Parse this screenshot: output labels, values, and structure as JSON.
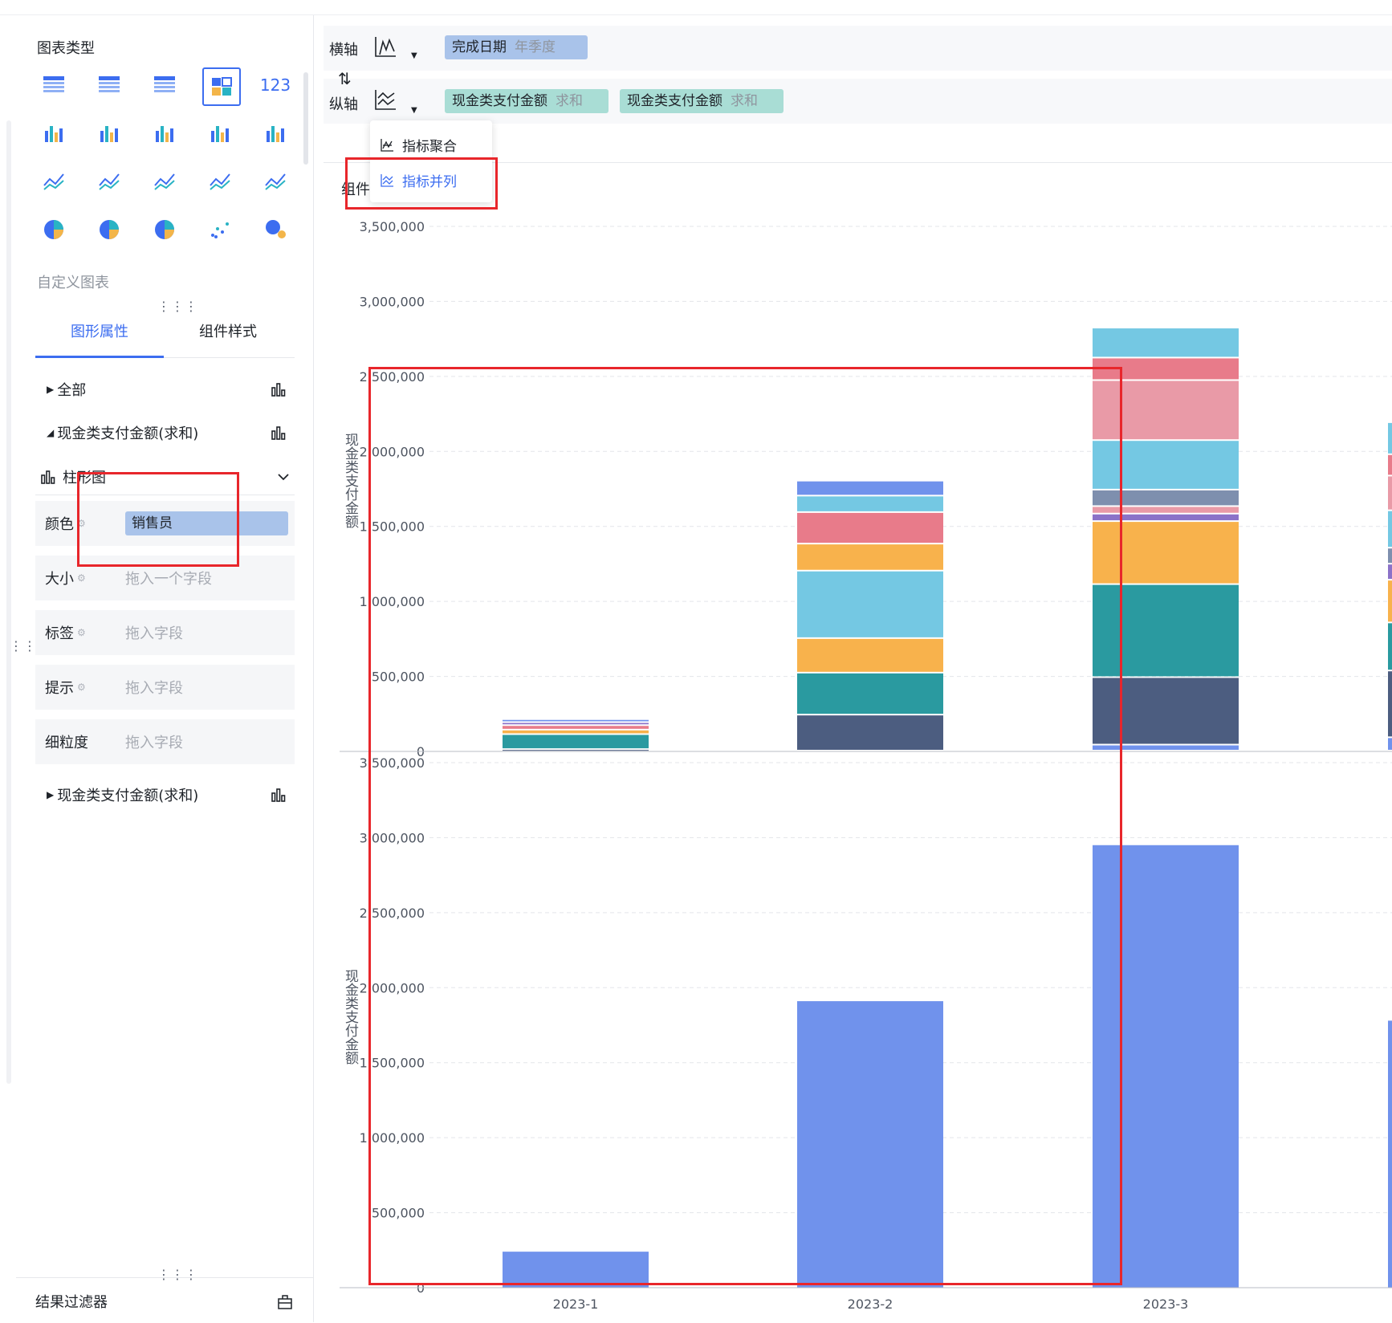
{
  "left_panel": {
    "chart_type_title": "图表类型",
    "chart_icons": [
      [
        "table-icon",
        "summary-table-icon",
        "detail-table-icon",
        "dashboard-combo-icon",
        "kpi-number-icon"
      ],
      [
        "grouped-table-bar-icon",
        "multi-series-bar-icon",
        "column-chart-icon",
        "horizontal-bar-icon",
        "waterfall-icon"
      ],
      [
        "line-chart-icon",
        "radar-cross-icon",
        "radar-chart-icon",
        "area-chart-icon",
        "gauge-icon"
      ],
      [
        "pie-chart-icon",
        "rose-pie-icon",
        "donut-chart-icon",
        "scatter-icon",
        "bubble-icon"
      ]
    ],
    "kpi_text": "123",
    "custom_chart_label": "自定义图表",
    "tabs": [
      "图形属性",
      "组件样式"
    ],
    "tree": {
      "all_label": "全部",
      "metric1_label": "现金类支付金额(求和)",
      "chart_kind_label": "柱形图",
      "metric2_label": "现金类支付金额(求和)"
    },
    "props": [
      {
        "label": "颜色",
        "value": "销售员"
      },
      {
        "label": "大小",
        "placeholder": "拖入一个字段"
      },
      {
        "label": "标签",
        "placeholder": "拖入字段"
      },
      {
        "label": "提示",
        "placeholder": "拖入字段"
      },
      {
        "label": "细粒度",
        "placeholder": "拖入字段"
      }
    ],
    "result_filter": "结果过滤器"
  },
  "config": {
    "x_axis_label": "横轴",
    "y_axis_label": "纵轴",
    "x_field": {
      "name": "完成日期",
      "agg": "年季度"
    },
    "y_fields": [
      {
        "name": "现金类支付金额",
        "agg": "求和"
      },
      {
        "name": "现金类支付金额",
        "agg": "求和"
      }
    ],
    "dropdown": [
      "指标聚合",
      "指标并列"
    ],
    "component_label": "组件"
  },
  "colors": {
    "accent": "#3c6df0",
    "pill_blue": "#a9c3ea",
    "pill_green": "#a9ddd5",
    "highlight_red": "#e8262b",
    "bar_blue": "#7092ec"
  },
  "chart_data": [
    {
      "type": "bar",
      "stacked": true,
      "ylabel": "现金类支付金额",
      "ylim": [
        0,
        3500000
      ],
      "yticks": [
        "3,500,000",
        "3,000,000",
        "2,500,000",
        "2,000,000",
        "1,500,000",
        "1,000,000",
        "500,000",
        "0"
      ],
      "categories": [
        "2023-1",
        "2023-2",
        "2023-3"
      ],
      "segment_colors": [
        "#7092ec",
        "#4c5d80",
        "#2a9aa0",
        "#f8b24c",
        "#74c8e3",
        "#e87b8a",
        "#e99aa7",
        "#8b72c8",
        "#7e8fae"
      ],
      "stacks": [
        [
          {
            "c": 1,
            "v": 10000
          },
          {
            "c": 2,
            "v": 100000
          },
          {
            "c": 3,
            "v": 30000
          },
          {
            "c": 5,
            "v": 30000
          },
          {
            "c": 7,
            "v": 20000
          },
          {
            "c": 0,
            "v": 20000
          }
        ],
        [
          {
            "c": 1,
            "v": 240000
          },
          {
            "c": 2,
            "v": 280000
          },
          {
            "c": 3,
            "v": 230000
          },
          {
            "c": 4,
            "v": 450000
          },
          {
            "c": 3,
            "v": 180000
          },
          {
            "c": 5,
            "v": 210000
          },
          {
            "c": 4,
            "v": 110000
          },
          {
            "c": 0,
            "v": 100000
          }
        ],
        [
          {
            "c": 0,
            "v": 40000
          },
          {
            "c": 1,
            "v": 450000
          },
          {
            "c": 2,
            "v": 620000
          },
          {
            "c": 3,
            "v": 420000
          },
          {
            "c": 7,
            "v": 50000
          },
          {
            "c": 6,
            "v": 50000
          },
          {
            "c": 8,
            "v": 110000
          },
          {
            "c": 4,
            "v": 330000
          },
          {
            "c": 6,
            "v": 400000
          },
          {
            "c": 5,
            "v": 150000
          },
          {
            "c": 4,
            "v": 200000
          }
        ]
      ],
      "partial_stack_right": true
    },
    {
      "type": "bar",
      "ylabel": "现金类支付金额",
      "ylim": [
        0,
        3500000
      ],
      "yticks": [
        "3,500,000",
        "3,000,000",
        "2,500,000",
        "2,000,000",
        "1,500,000",
        "1,000,000",
        "500,000",
        "0"
      ],
      "categories": [
        "2023-1",
        "2023-2",
        "2023-3"
      ],
      "values": [
        240000,
        1910000,
        2950000
      ],
      "partial_value_right": 1780000
    }
  ]
}
